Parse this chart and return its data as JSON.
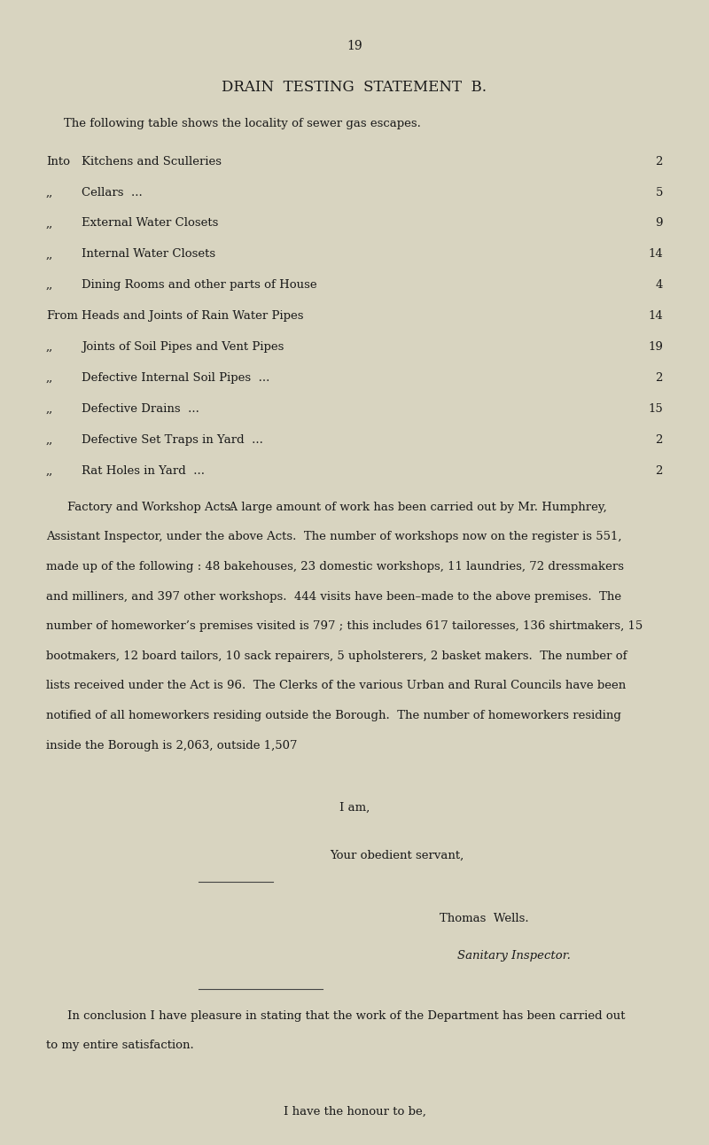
{
  "bg_color": "#d8d4c0",
  "text_color": "#1a1a1a",
  "page_number": "19",
  "title": "DRAIN  TESTING  STATEMENT  B.",
  "subtitle": "The following table shows the locality of sewer gas escapes.",
  "prefix_labels": [
    "Into",
    ",,",
    ",,",
    ",,",
    ",,",
    "From",
    ",,",
    ",,",
    ",,",
    ",,",
    ",,"
  ],
  "text_labels": [
    "Kitchens and Sculleries",
    "Cellars  ...",
    "External Water Closets",
    "Internal Water Closets",
    "Dining Rooms and other parts of House",
    "Heads and Joints of Rain Water Pipes",
    "Joints of Soil Pipes and Vent Pipes",
    "Defective Internal Soil Pipes  ...",
    "Defective Drains  ...",
    "Defective Set Traps in Yard  ...",
    "Rat Holes in Yard  ..."
  ],
  "values": [
    "2",
    "5",
    "9",
    "14",
    "4",
    "14",
    "19",
    "2",
    "15",
    "2",
    "2"
  ],
  "factory_lines": [
    "Factory and Workshop Acts.  A large amount of work has been carried out by Mr. Humphrey,",
    "Assistant Inspector, under the above Acts.  The number of workshops now on the register is 551,",
    "made up of the following : 48 bakehouses, 23 domestic workshops, 11 laundries, 72 dressmakers",
    "and milliners, and 397 other workshops.  444 visits have been–made to the above premises.  The",
    "number of homeworker’s premises visited is 797 ; this includes 617 tailoresses, 136 shirtmakers, 15",
    "bootmakers, 12 board tailors, 10 sack repairers, 5 upholsterers, 2 basket makers.  The number of",
    "lists received under the Act is 96.  The Clerks of the various Urban and Rural Councils have been",
    "notified of all homeworkers residing outside the Borough.  The number of homeworkers residing",
    "inside the Borough is 2,063, outside 1,507"
  ],
  "factory_sc": "Factory and Workshop Acts.",
  "factory_rest": "  A large amount of work has been carried out by Mr. Humphrey,",
  "conclusion_lines": [
    "In conclusion I have pleasure in stating that the work of the Department has been carried out",
    "to my entire satisfaction."
  ],
  "figsize": [
    8.0,
    12.92
  ],
  "dpi": 100
}
